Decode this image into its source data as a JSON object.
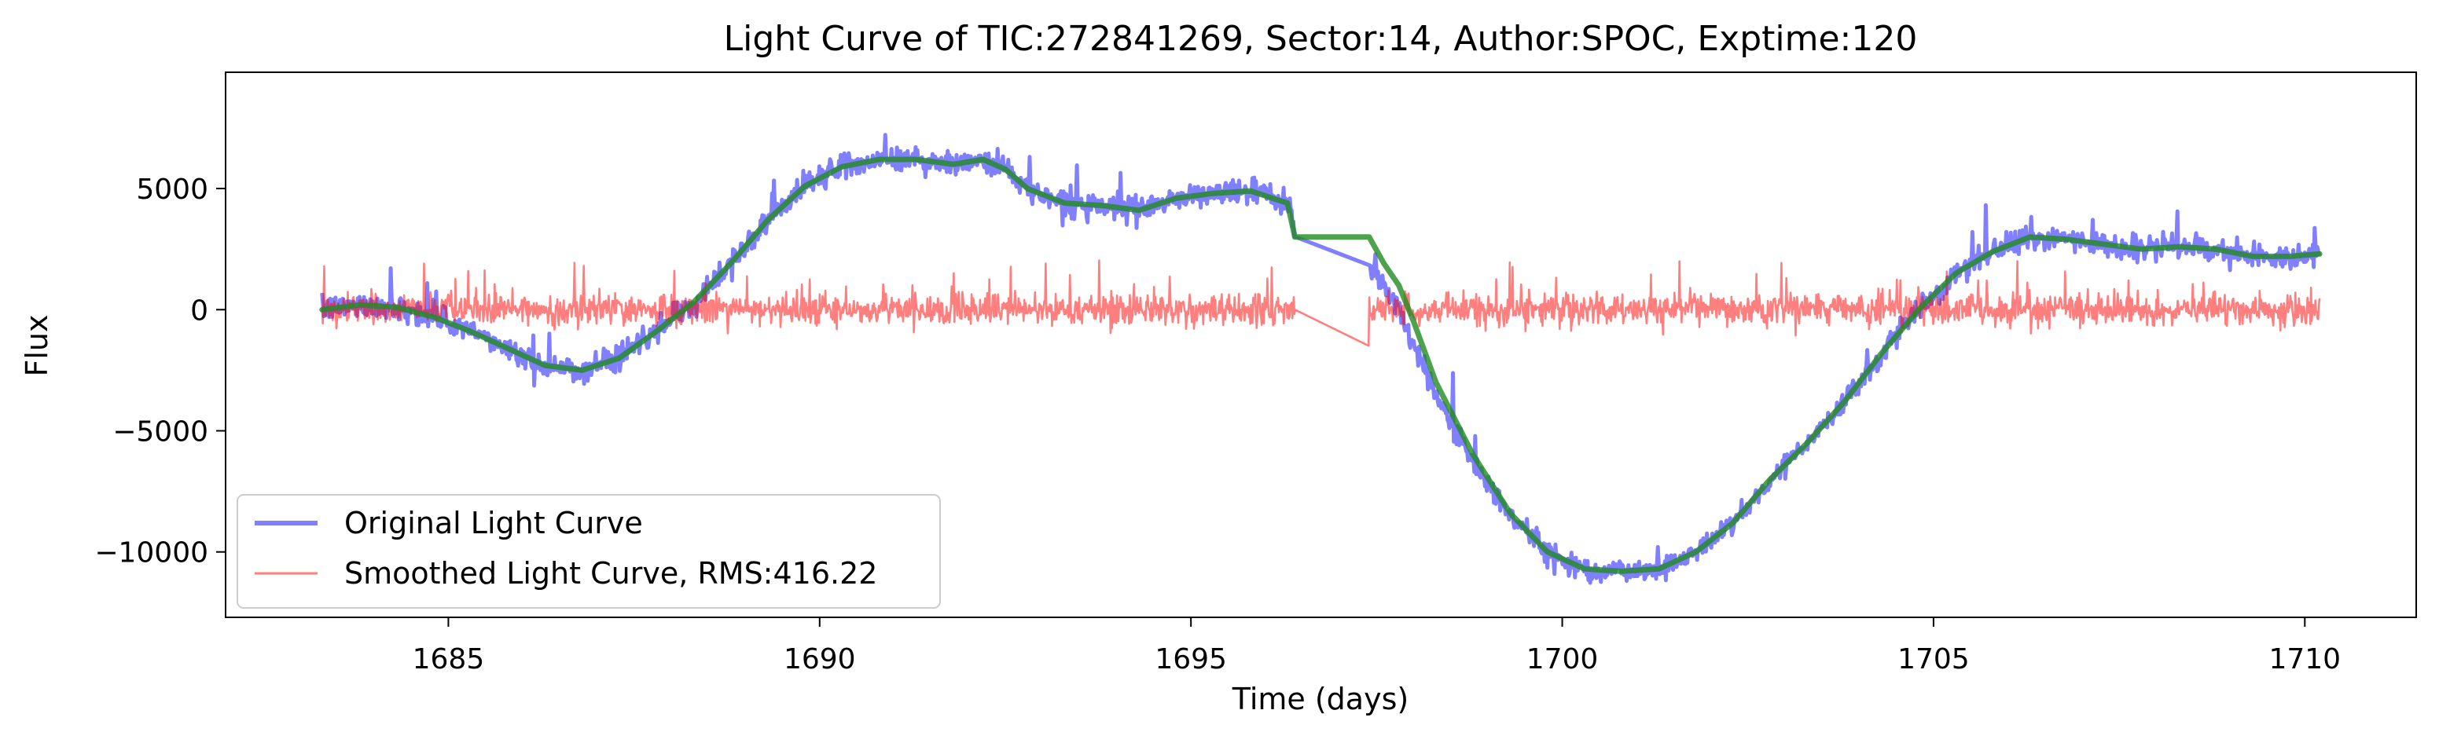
{
  "chart_data": {
    "type": "line",
    "title": "Light Curve of TIC:272841269, Sector:14, Author:SPOC, Exptime:120",
    "xlabel": "Time (days)",
    "ylabel": "Flux",
    "xlim": [
      1682.0,
      1711.5
    ],
    "ylim": [
      -12700,
      9800
    ],
    "x_ticks": [
      1685,
      1690,
      1695,
      1700,
      1705,
      1710
    ],
    "x_tick_labels": [
      "1685",
      "1690",
      "1695",
      "1700",
      "1705",
      "1710"
    ],
    "y_ticks": [
      -10000,
      -5000,
      0,
      5000
    ],
    "y_tick_labels": [
      "−10000",
      "−5000",
      "0",
      "5000"
    ],
    "grid": false,
    "legend_position": "lower-left",
    "gap": [
      1696.4,
      1697.4
    ],
    "series": [
      {
        "name": "Original Light Curve",
        "color": "#0000ff",
        "alpha": 0.5,
        "noise_amplitude": 450,
        "x": [
          1683.3,
          1683.8,
          1684.3,
          1684.8,
          1685.3,
          1685.8,
          1686.3,
          1686.8,
          1687.3,
          1687.8,
          1688.3,
          1688.8,
          1689.3,
          1689.8,
          1690.3,
          1690.8,
          1691.3,
          1691.8,
          1692.2,
          1692.5,
          1692.8,
          1693.3,
          1693.8,
          1694.3,
          1694.8,
          1695.3,
          1695.8,
          1696.3,
          1696.4,
          1697.4,
          1697.6,
          1697.8,
          1698.0,
          1698.3,
          1698.8,
          1699.3,
          1699.8,
          1700.3,
          1700.8,
          1701.3,
          1701.8,
          1702.3,
          1702.8,
          1703.3,
          1703.8,
          1704.3,
          1704.8,
          1705.3,
          1705.8,
          1706.3,
          1706.8,
          1707.3,
          1707.8,
          1708.3,
          1708.8,
          1709.3,
          1709.8,
          1710.2
        ],
        "values": [
          0,
          200,
          100,
          -300,
          -900,
          -1600,
          -2300,
          -2500,
          -2000,
          -900,
          300,
          1900,
          3700,
          5100,
          5900,
          6200,
          6200,
          6000,
          6200,
          5800,
          5000,
          4400,
          4300,
          4100,
          4600,
          4800,
          4900,
          4400,
          3200,
          1900,
          1000,
          100,
          -1500,
          -3500,
          -6300,
          -8500,
          -10000,
          -10700,
          -10800,
          -10700,
          -10000,
          -8800,
          -7000,
          -5500,
          -3800,
          -1800,
          0,
          1500,
          2400,
          3000,
          2900,
          2700,
          2500,
          2600,
          2500,
          2200,
          2200,
          2300
        ]
      },
      {
        "name": "Smoothed Light Curve, RMS:416.22",
        "color": "#ff0000",
        "alpha": 0.5,
        "rms": 416.22,
        "x": [
          1683.3,
          1696.4,
          1697.4,
          1710.2
        ],
        "values": [
          0,
          0,
          -1500,
          0
        ]
      },
      {
        "color": "#228b22",
        "alpha": 0.8,
        "x": [
          1683.3,
          1683.8,
          1684.3,
          1684.8,
          1685.3,
          1685.8,
          1686.3,
          1686.8,
          1687.3,
          1687.8,
          1688.3,
          1688.8,
          1689.3,
          1689.8,
          1690.3,
          1690.8,
          1691.3,
          1691.8,
          1692.2,
          1692.5,
          1692.8,
          1693.3,
          1693.8,
          1694.3,
          1694.8,
          1695.3,
          1695.8,
          1696.3,
          1696.4,
          1697.4,
          1697.6,
          1697.8,
          1698.0,
          1698.3,
          1698.8,
          1699.3,
          1699.8,
          1700.3,
          1700.8,
          1701.3,
          1701.8,
          1702.3,
          1702.8,
          1703.3,
          1703.8,
          1704.3,
          1704.8,
          1705.3,
          1705.8,
          1706.3,
          1706.8,
          1707.3,
          1707.8,
          1708.3,
          1708.8,
          1709.3,
          1709.8,
          1710.2
        ],
        "values": [
          0,
          200,
          100,
          -300,
          -900,
          -1600,
          -2300,
          -2500,
          -2000,
          -900,
          300,
          1900,
          3700,
          5100,
          5900,
          6200,
          6200,
          6000,
          6200,
          5800,
          5000,
          4400,
          4300,
          4100,
          4600,
          4800,
          4900,
          4400,
          3000,
          3000,
          1900,
          1000,
          -500,
          -3000,
          -6000,
          -8400,
          -10000,
          -10700,
          -10800,
          -10700,
          -10000,
          -8800,
          -7000,
          -5500,
          -3800,
          -1800,
          0,
          1500,
          2400,
          3000,
          2900,
          2700,
          2500,
          2600,
          2500,
          2200,
          2200,
          2300
        ]
      }
    ]
  }
}
